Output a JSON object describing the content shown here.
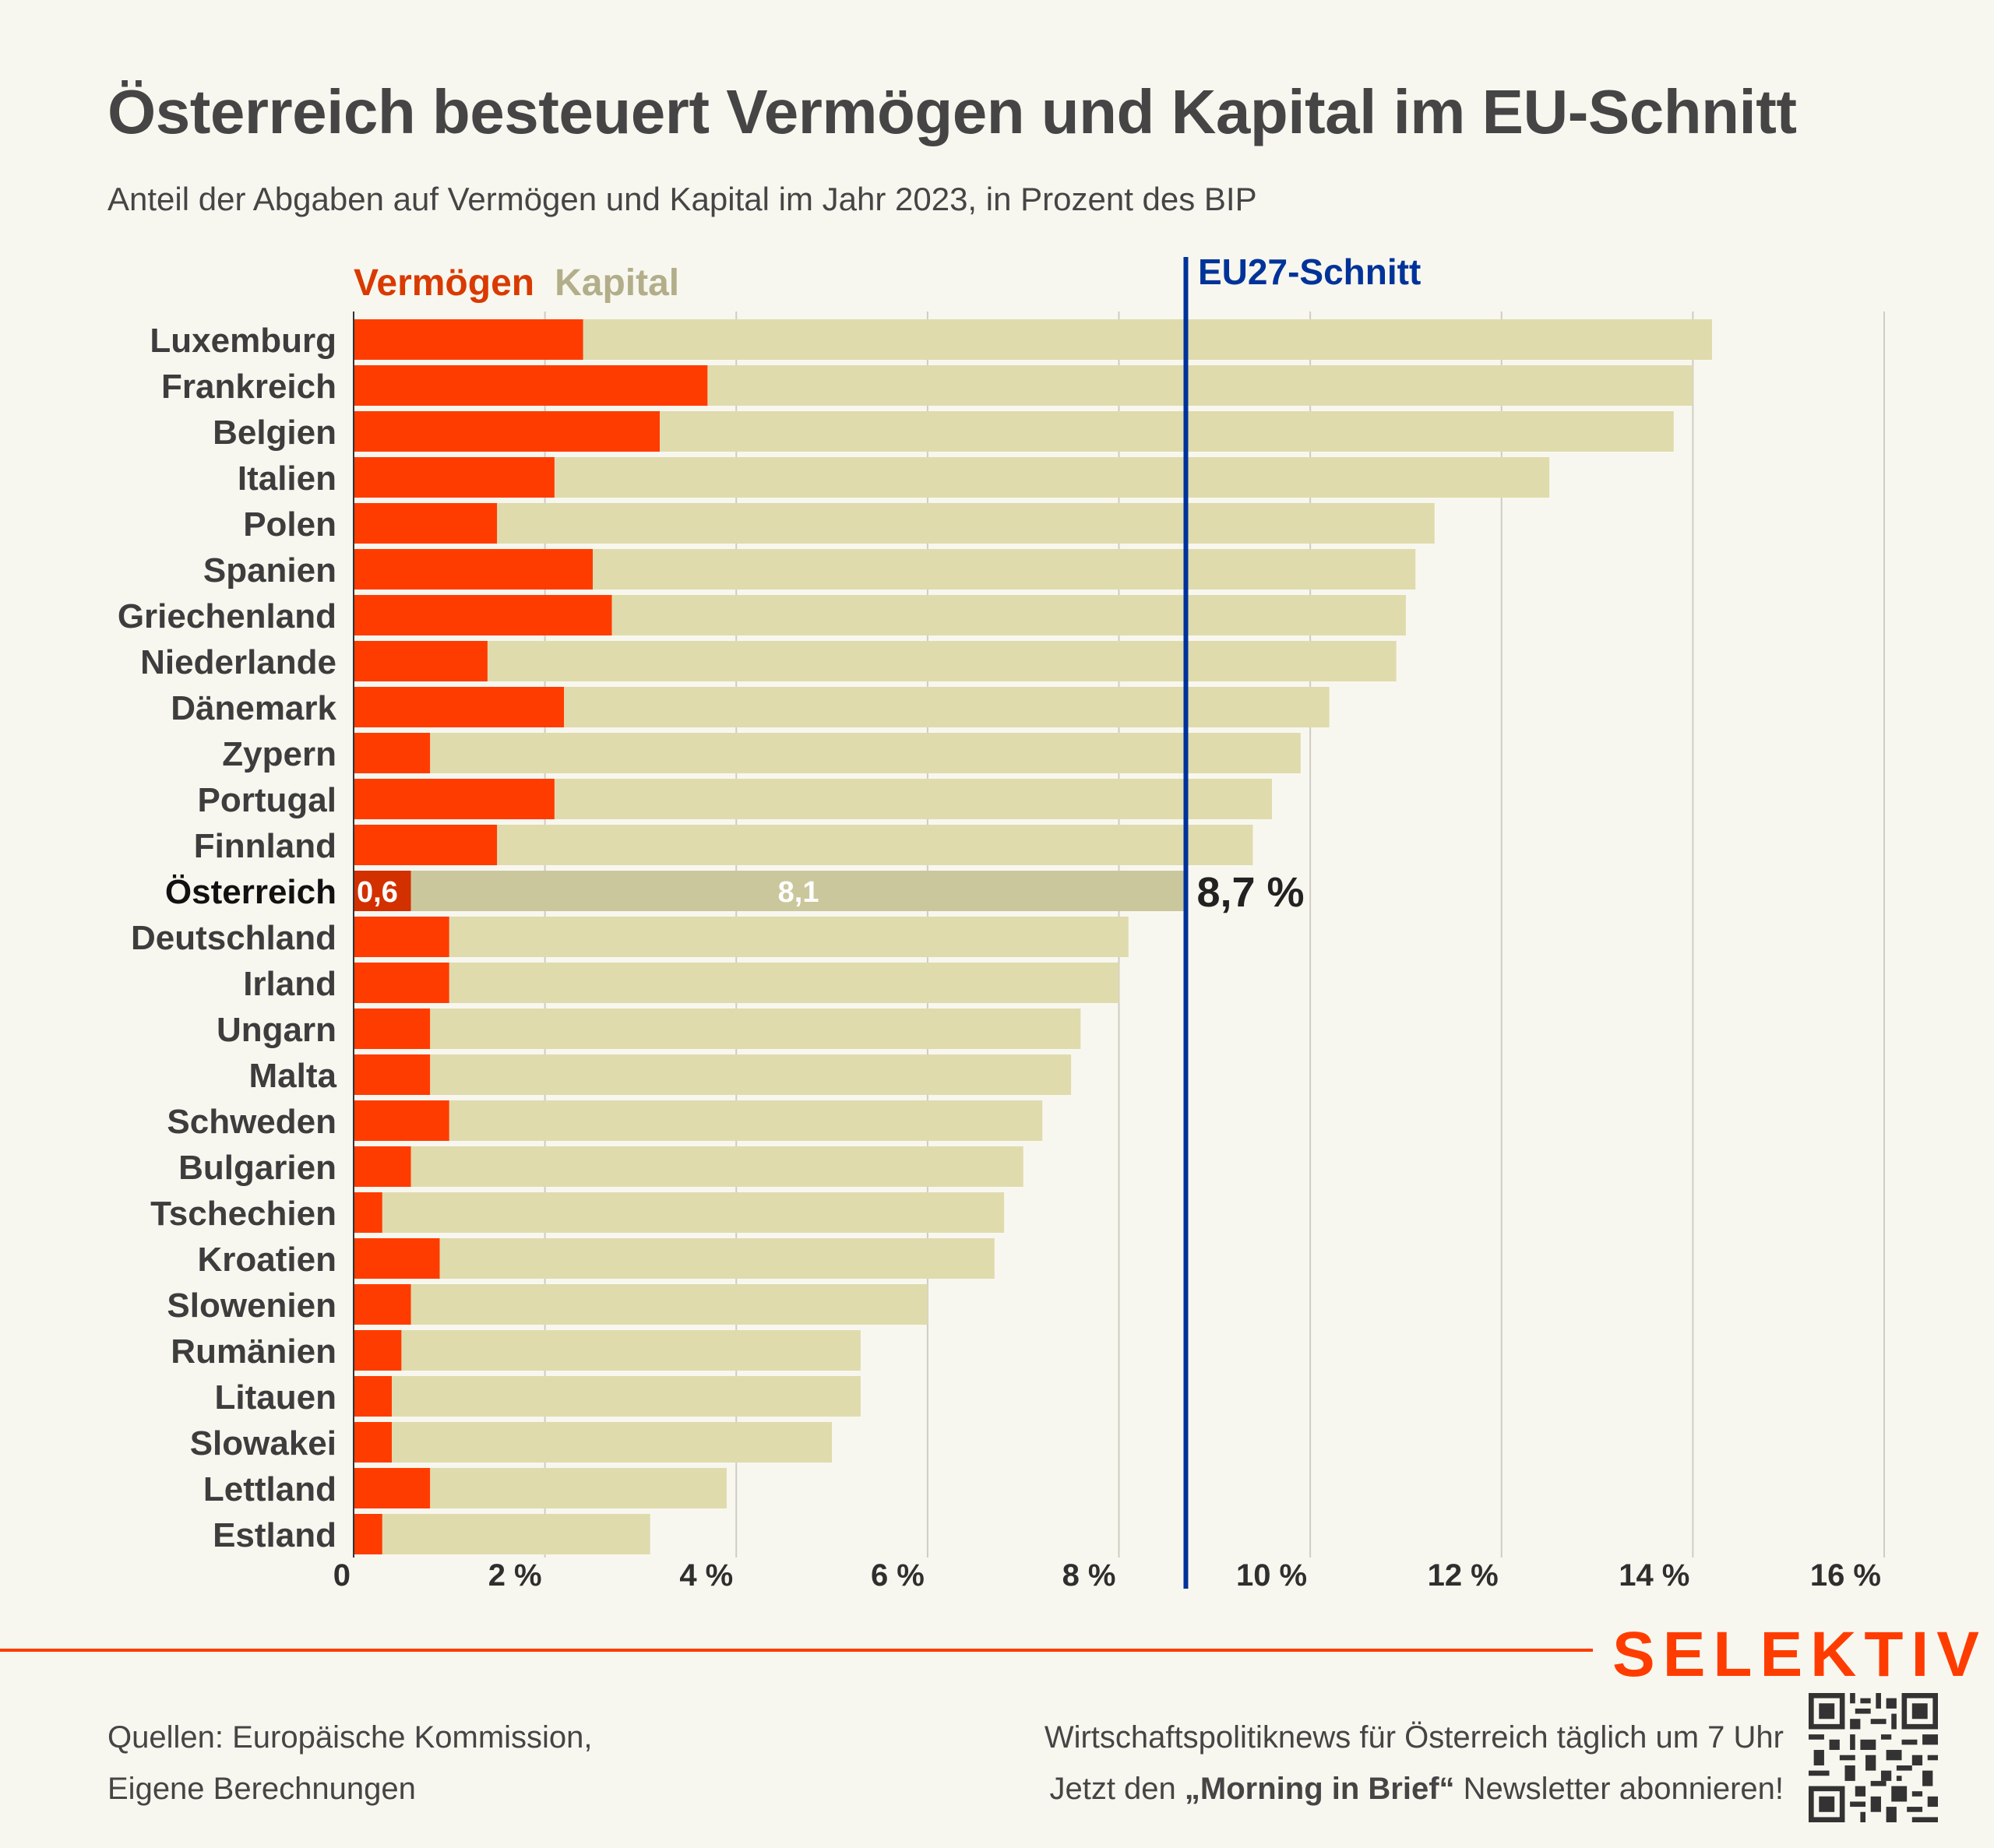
{
  "header": {
    "title": "Österreich besteuert Vermögen und Kapital im EU-Schnitt",
    "subtitle": "Anteil der Abgaben auf Vermögen und Kapital im Jahr 2023, in Prozent des BIP"
  },
  "legend": {
    "vermoegen": "Vermögen",
    "kapital": "Kapital"
  },
  "colors": {
    "vermoegen": "#ff3c00",
    "kapital": "#dfdbad",
    "vermoegen_highlight": "#d33000",
    "kapital_highlight": "#cbc79d",
    "eu_line": "#003399",
    "background": "#f8f7ef",
    "brand": "#ff3c00"
  },
  "chart_data": {
    "type": "bar",
    "orientation": "horizontal",
    "stacked": true,
    "title": "Österreich besteuert Vermögen und Kapital im EU-Schnitt",
    "subtitle": "Anteil der Abgaben auf Vermögen und Kapital im Jahr 2023, in Prozent des BIP",
    "xlabel": "",
    "ylabel": "",
    "xlim": [
      0,
      16
    ],
    "x_ticks": [
      0,
      2,
      4,
      6,
      8,
      10,
      12,
      14,
      16
    ],
    "x_tick_labels": [
      "0",
      "2 %",
      "4 %",
      "6 %",
      "8 %",
      "10 %",
      "12 %",
      "14 %",
      "16 %"
    ],
    "grid": "vertical",
    "legend_position": "top-left",
    "categories": [
      "Luxemburg",
      "Frankreich",
      "Belgien",
      "Italien",
      "Polen",
      "Spanien",
      "Griechenland",
      "Niederlande",
      "Dänemark",
      "Zypern",
      "Portugal",
      "Finnland",
      "Österreich",
      "Deutschland",
      "Irland",
      "Ungarn",
      "Malta",
      "Schweden",
      "Bulgarien",
      "Tschechien",
      "Kroatien",
      "Slowenien",
      "Rumänien",
      "Litauen",
      "Slowakei",
      "Lettland",
      "Estland"
    ],
    "series": [
      {
        "name": "Vermögen",
        "values": [
          2.4,
          3.7,
          3.2,
          2.1,
          1.5,
          2.5,
          2.7,
          1.4,
          2.2,
          0.8,
          2.1,
          1.5,
          0.6,
          1.0,
          1.0,
          0.8,
          0.8,
          1.0,
          0.6,
          0.3,
          0.9,
          0.6,
          0.5,
          0.4,
          0.4,
          0.8,
          0.3
        ]
      },
      {
        "name": "Kapital",
        "values": [
          11.8,
          10.3,
          10.6,
          10.4,
          9.8,
          8.6,
          8.3,
          9.5,
          8.0,
          9.1,
          7.5,
          7.9,
          8.1,
          7.1,
          7.0,
          6.8,
          6.7,
          6.2,
          6.4,
          6.5,
          5.8,
          5.4,
          4.8,
          4.9,
          4.6,
          3.1,
          2.8
        ]
      }
    ],
    "totals": [
      14.2,
      14.0,
      13.8,
      12.5,
      11.3,
      11.1,
      11.0,
      10.9,
      10.2,
      9.9,
      9.6,
      9.4,
      8.7,
      8.1,
      8.0,
      7.6,
      7.6,
      7.2,
      7.0,
      6.8,
      6.7,
      6.0,
      5.3,
      5.3,
      5.0,
      3.9,
      3.1
    ],
    "highlight": "Österreich",
    "highlight_labels": {
      "vermoegen": "0,6",
      "kapital": "8,1",
      "total": "8,7 %"
    },
    "reference_line": {
      "label": "EU27-Schnitt",
      "value": 8.7
    }
  },
  "footer": {
    "brand": "SELEKTIV",
    "sources_line1": "Quellen: Europäische Kommission,",
    "sources_line2": "Eigene Berechnungen",
    "promo_line1": "Wirtschaftspolitiknews für Österreich täglich um 7 Uhr",
    "promo_line2_pre": "Jetzt den ",
    "promo_line2_bold": "„Morning in Brief“",
    "promo_line2_post": " Newsletter abonnieren!",
    "qr_icon": "qr-code-icon"
  }
}
